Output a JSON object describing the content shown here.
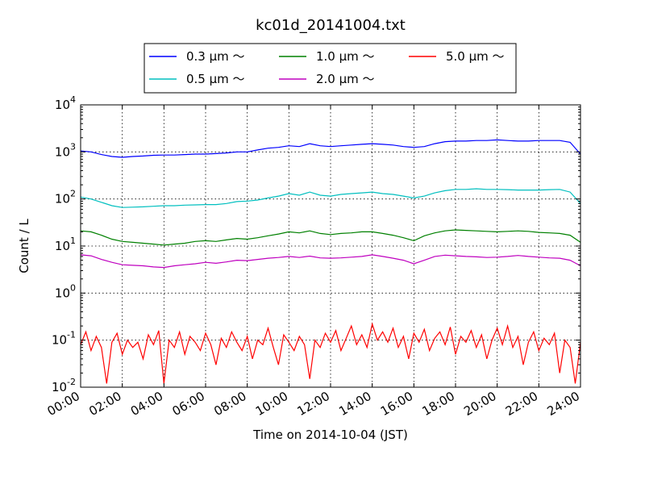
{
  "chart_data": {
    "type": "line",
    "title": "kc01d_20141004.txt",
    "xlabel": "Time on 2014-10-04 (JST)",
    "ylabel": "Count / L",
    "x_unit": "hours",
    "xlim": [
      0,
      24
    ],
    "ylim": [
      0.01,
      10000
    ],
    "yscale": "log",
    "grid": true,
    "legend_position": "top-center",
    "x_ticks": [
      {
        "value": 0,
        "label": "00:00"
      },
      {
        "value": 2,
        "label": "02:00"
      },
      {
        "value": 4,
        "label": "04:00"
      },
      {
        "value": 6,
        "label": "06:00"
      },
      {
        "value": 8,
        "label": "08:00"
      },
      {
        "value": 10,
        "label": "10:00"
      },
      {
        "value": 12,
        "label": "12:00"
      },
      {
        "value": 14,
        "label": "14:00"
      },
      {
        "value": 16,
        "label": "16:00"
      },
      {
        "value": 18,
        "label": "18:00"
      },
      {
        "value": 20,
        "label": "20:00"
      },
      {
        "value": 22,
        "label": "22:00"
      },
      {
        "value": 24,
        "label": "24:00"
      }
    ],
    "y_ticks": [
      {
        "value": 0.01,
        "base": "10",
        "exp": "-2"
      },
      {
        "value": 0.1,
        "base": "10",
        "exp": "-1"
      },
      {
        "value": 1,
        "base": "10",
        "exp": "0"
      },
      {
        "value": 10,
        "base": "10",
        "exp": "1"
      },
      {
        "value": 100,
        "base": "10",
        "exp": "2"
      },
      {
        "value": 1000,
        "base": "10",
        "exp": "3"
      },
      {
        "value": 10000,
        "base": "10",
        "exp": "4"
      }
    ],
    "series": [
      {
        "name": "0.3 μm ～",
        "color": "#0000ff",
        "x": [
          0,
          0.5,
          1,
          1.5,
          2,
          2.5,
          3,
          3.5,
          4,
          4.5,
          5,
          5.5,
          6,
          6.5,
          7,
          7.5,
          8,
          8.5,
          9,
          9.5,
          10,
          10.5,
          11,
          11.5,
          12,
          12.5,
          13,
          13.5,
          14,
          14.5,
          15,
          15.5,
          16,
          16.5,
          17,
          17.5,
          18,
          18.5,
          19,
          19.5,
          20,
          20.5,
          21,
          21.5,
          22,
          22.5,
          23,
          23.5,
          24
        ],
        "y": [
          1050,
          1000,
          880,
          800,
          770,
          800,
          820,
          850,
          860,
          860,
          880,
          900,
          900,
          920,
          950,
          1000,
          1000,
          1100,
          1200,
          1250,
          1350,
          1300,
          1500,
          1350,
          1300,
          1350,
          1400,
          1450,
          1500,
          1450,
          1400,
          1300,
          1250,
          1300,
          1500,
          1650,
          1700,
          1700,
          1750,
          1750,
          1800,
          1750,
          1700,
          1700,
          1750,
          1750,
          1750,
          1600,
          900
        ]
      },
      {
        "name": "0.5 μm ～",
        "color": "#00bfbf",
        "x": [
          0,
          0.5,
          1,
          1.5,
          2,
          2.5,
          3,
          3.5,
          4,
          4.5,
          5,
          5.5,
          6,
          6.5,
          7,
          7.5,
          8,
          8.5,
          9,
          9.5,
          10,
          10.5,
          11,
          11.5,
          12,
          12.5,
          13,
          13.5,
          14,
          14.5,
          15,
          15.5,
          16,
          16.5,
          17,
          17.5,
          18,
          18.5,
          19,
          19.5,
          20,
          20.5,
          21,
          21.5,
          22,
          22.5,
          23,
          23.5,
          24
        ],
        "y": [
          110,
          100,
          85,
          72,
          66,
          67,
          68,
          70,
          72,
          72,
          74,
          75,
          76,
          76,
          80,
          88,
          90,
          95,
          105,
          115,
          130,
          120,
          140,
          120,
          115,
          125,
          130,
          135,
          140,
          130,
          125,
          115,
          105,
          115,
          135,
          150,
          160,
          160,
          165,
          160,
          160,
          158,
          155,
          155,
          155,
          158,
          160,
          140,
          80
        ]
      },
      {
        "name": "1.0 μm ～",
        "color": "#008000",
        "x": [
          0,
          0.5,
          1,
          1.5,
          2,
          2.5,
          3,
          3.5,
          4,
          4.5,
          5,
          5.5,
          6,
          6.5,
          7,
          7.5,
          8,
          8.5,
          9,
          9.5,
          10,
          10.5,
          11,
          11.5,
          12,
          12.5,
          13,
          13.5,
          14,
          14.5,
          15,
          15.5,
          16,
          16.5,
          17,
          17.5,
          18,
          18.5,
          19,
          19.5,
          20,
          20.5,
          21,
          21.5,
          22,
          22.5,
          23,
          23.5,
          24
        ],
        "y": [
          21,
          20,
          17,
          14,
          12.5,
          12,
          11.5,
          11,
          10.5,
          11,
          11.5,
          12.5,
          13,
          12.5,
          13.5,
          14.5,
          14,
          15,
          16.5,
          18,
          20,
          19,
          21,
          18.5,
          17.5,
          18.5,
          19,
          20,
          20,
          18.5,
          17,
          15,
          13,
          16.5,
          19,
          21,
          22,
          21.5,
          21,
          20.5,
          20,
          20.5,
          21,
          20.5,
          19.5,
          19,
          18.5,
          17,
          12
        ]
      },
      {
        "name": "2.0 μm ～",
        "color": "#bf00bf",
        "x": [
          0,
          0.5,
          1,
          1.5,
          2,
          2.5,
          3,
          3.5,
          4,
          4.5,
          5,
          5.5,
          6,
          6.5,
          7,
          7.5,
          8,
          8.5,
          9,
          9.5,
          10,
          10.5,
          11,
          11.5,
          12,
          12.5,
          13,
          13.5,
          14,
          14.5,
          15,
          15.5,
          16,
          16.5,
          17,
          17.5,
          18,
          18.5,
          19,
          19.5,
          20,
          20.5,
          21,
          21.5,
          22,
          22.5,
          23,
          23.5,
          24
        ],
        "y": [
          6.5,
          6.2,
          5.2,
          4.5,
          4,
          3.9,
          3.8,
          3.6,
          3.5,
          3.8,
          4,
          4.2,
          4.5,
          4.3,
          4.6,
          5,
          4.9,
          5.2,
          5.5,
          5.7,
          6,
          5.7,
          6.1,
          5.6,
          5.5,
          5.6,
          5.8,
          6,
          6.5,
          6,
          5.5,
          5,
          4.2,
          5,
          6,
          6.4,
          6.2,
          6,
          5.9,
          5.7,
          5.8,
          6,
          6.3,
          6,
          5.8,
          5.6,
          5.5,
          5,
          3.8
        ]
      },
      {
        "name": "5.0 μm ～",
        "color": "#ff0000",
        "x": [
          0,
          0.25,
          0.5,
          0.75,
          1,
          1.25,
          1.5,
          1.75,
          2,
          2.25,
          2.5,
          2.75,
          3,
          3.25,
          3.5,
          3.75,
          4,
          4.25,
          4.5,
          4.75,
          5,
          5.25,
          5.5,
          5.75,
          6,
          6.25,
          6.5,
          6.75,
          7,
          7.25,
          7.5,
          7.75,
          8,
          8.25,
          8.5,
          8.75,
          9,
          9.25,
          9.5,
          9.75,
          10,
          10.25,
          10.5,
          10.75,
          11,
          11.25,
          11.5,
          11.75,
          12,
          12.25,
          12.5,
          12.75,
          13,
          13.25,
          13.5,
          13.75,
          14,
          14.25,
          14.5,
          14.75,
          15,
          15.25,
          15.5,
          15.75,
          16,
          16.25,
          16.5,
          16.75,
          17,
          17.25,
          17.5,
          17.75,
          18,
          18.25,
          18.5,
          18.75,
          19,
          19.25,
          19.5,
          19.75,
          20,
          20.25,
          20.5,
          20.75,
          21,
          21.25,
          21.5,
          21.75,
          22,
          22.25,
          22.5,
          22.75,
          23,
          23.25,
          23.5,
          23.75,
          24
        ],
        "y": [
          0.08,
          0.15,
          0.06,
          0.12,
          0.07,
          0.012,
          0.09,
          0.14,
          0.05,
          0.1,
          0.07,
          0.09,
          0.04,
          0.13,
          0.08,
          0.16,
          0.012,
          0.1,
          0.07,
          0.15,
          0.05,
          0.12,
          0.09,
          0.06,
          0.14,
          0.08,
          0.03,
          0.11,
          0.07,
          0.15,
          0.09,
          0.06,
          0.12,
          0.04,
          0.1,
          0.08,
          0.18,
          0.07,
          0.03,
          0.13,
          0.09,
          0.06,
          0.12,
          0.08,
          0.015,
          0.1,
          0.07,
          0.14,
          0.09,
          0.16,
          0.06,
          0.11,
          0.2,
          0.08,
          0.13,
          0.07,
          0.22,
          0.1,
          0.15,
          0.09,
          0.18,
          0.07,
          0.12,
          0.04,
          0.14,
          0.09,
          0.17,
          0.06,
          0.11,
          0.15,
          0.08,
          0.19,
          0.05,
          0.12,
          0.09,
          0.16,
          0.07,
          0.13,
          0.04,
          0.1,
          0.18,
          0.08,
          0.2,
          0.07,
          0.12,
          0.03,
          0.09,
          0.15,
          0.06,
          0.11,
          0.08,
          0.14,
          0.02,
          0.1,
          0.07,
          0.012,
          0.09
        ]
      }
    ]
  }
}
